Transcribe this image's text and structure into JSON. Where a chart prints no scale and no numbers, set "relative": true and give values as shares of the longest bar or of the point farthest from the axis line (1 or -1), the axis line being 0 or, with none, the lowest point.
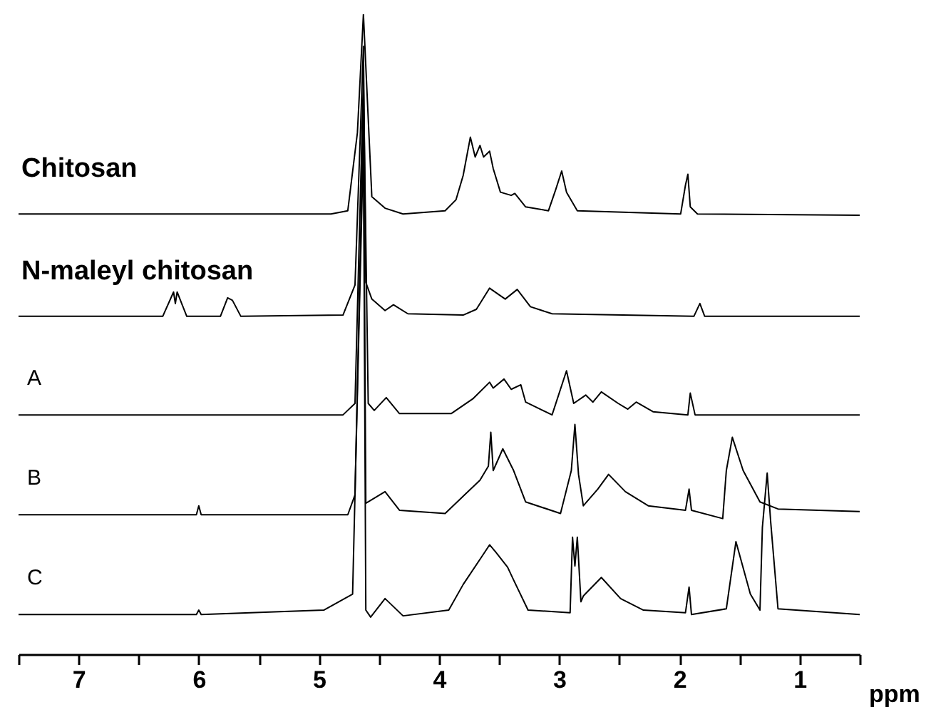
{
  "chart_data": {
    "type": "line",
    "relative": true,
    "xlabel": "ppm",
    "xlim": [
      7.5,
      0.5
    ],
    "xticks": [
      {
        "value": 7.5,
        "label": null
      },
      7,
      {
        "value": 6.5,
        "label": null
      },
      6,
      {
        "value": 5.5,
        "label": null
      },
      5,
      {
        "value": 4.5,
        "label": null
      },
      4,
      {
        "value": 3.5,
        "label": null
      },
      3,
      {
        "value": 2.5,
        "label": null
      },
      2,
      {
        "value": 1.5,
        "label": null
      },
      1,
      {
        "value": 0.5,
        "label": null
      }
    ],
    "tick_labels": "x",
    "marker": "none",
    "line_style": "solid",
    "series": [
      {
        "name": "Chitosan",
        "color": "#000000",
        "x": [
          7.5,
          4.9,
          4.76,
          4.68,
          4.63,
          4.56,
          4.45,
          4.3,
          3.95,
          3.86,
          3.8,
          3.74,
          3.7,
          3.66,
          3.63,
          3.58,
          3.55,
          3.49,
          3.4,
          3.37,
          3.28,
          3.09,
          3.03,
          2.98,
          2.94,
          2.85,
          1.99,
          1.95,
          1.93,
          1.91,
          1.85,
          0.5
        ],
        "values": [
          0.688,
          0.688,
          0.693,
          0.815,
          1.0,
          0.715,
          0.697,
          0.688,
          0.693,
          0.71,
          0.748,
          0.808,
          0.777,
          0.795,
          0.777,
          0.786,
          0.759,
          0.722,
          0.717,
          0.72,
          0.699,
          0.693,
          0.726,
          0.755,
          0.722,
          0.693,
          0.688,
          0.733,
          0.75,
          0.699,
          0.688,
          0.686
        ]
      },
      {
        "name": "N-maleyl chitosan",
        "color": "#000000",
        "x": [
          7.5,
          6.3,
          6.21,
          6.195,
          6.18,
          6.1,
          5.82,
          5.76,
          5.72,
          5.65,
          4.8,
          4.7,
          4.63,
          4.61,
          4.56,
          4.45,
          4.38,
          4.26,
          3.8,
          3.69,
          3.58,
          3.45,
          3.35,
          3.24,
          3.06,
          1.88,
          1.83,
          1.79,
          0.5
        ],
        "values": [
          0.528,
          0.528,
          0.566,
          0.548,
          0.566,
          0.528,
          0.528,
          0.557,
          0.553,
          0.528,
          0.53,
          0.577,
          0.95,
          0.581,
          0.555,
          0.537,
          0.546,
          0.532,
          0.53,
          0.539,
          0.572,
          0.555,
          0.57,
          0.543,
          0.532,
          0.528,
          0.548,
          0.528,
          0.528
        ]
      },
      {
        "name": "A",
        "color": "#000000",
        "x": [
          7.5,
          4.8,
          4.7,
          4.63,
          4.59,
          4.54,
          4.44,
          4.33,
          3.9,
          3.72,
          3.58,
          3.55,
          3.46,
          3.4,
          3.32,
          3.28,
          3.06,
          2.94,
          2.88,
          2.78,
          2.72,
          2.65,
          2.51,
          2.43,
          2.36,
          2.22,
          1.93,
          1.91,
          1.87,
          0.5
        ],
        "values": [
          0.374,
          0.374,
          0.392,
          0.9,
          0.392,
          0.381,
          0.401,
          0.376,
          0.376,
          0.399,
          0.425,
          0.416,
          0.43,
          0.414,
          0.421,
          0.394,
          0.374,
          0.443,
          0.392,
          0.405,
          0.394,
          0.41,
          0.392,
          0.383,
          0.394,
          0.379,
          0.374,
          0.408,
          0.374,
          0.374
        ]
      },
      {
        "name": "B",
        "color": "#000000",
        "x": [
          7.5,
          6.02,
          6.0,
          5.98,
          4.76,
          4.7,
          4.63,
          4.61,
          4.45,
          4.33,
          3.95,
          3.8,
          3.66,
          3.59,
          3.57,
          3.55,
          3.47,
          3.38,
          3.28,
          2.99,
          2.9,
          2.87,
          2.84,
          2.8,
          2.68,
          2.59,
          2.45,
          2.26,
          1.95,
          1.92,
          1.9,
          1.64,
          1.61,
          1.56,
          1.47,
          1.33,
          1.18,
          0.5
        ],
        "values": [
          0.218,
          0.218,
          0.232,
          0.218,
          0.218,
          0.249,
          0.85,
          0.236,
          0.254,
          0.225,
          0.22,
          0.247,
          0.272,
          0.294,
          0.347,
          0.287,
          0.321,
          0.287,
          0.238,
          0.22,
          0.287,
          0.359,
          0.281,
          0.232,
          0.258,
          0.281,
          0.254,
          0.232,
          0.225,
          0.258,
          0.225,
          0.212,
          0.287,
          0.339,
          0.287,
          0.238,
          0.227,
          0.223
        ]
      },
      {
        "name": "C",
        "color": "#000000",
        "x": [
          7.5,
          6.02,
          6.0,
          5.98,
          4.96,
          4.72,
          4.63,
          4.61,
          4.57,
          4.45,
          4.3,
          3.92,
          3.8,
          3.64,
          3.58,
          3.53,
          3.43,
          3.38,
          3.26,
          2.91,
          2.89,
          2.87,
          2.85,
          2.82,
          2.8,
          2.65,
          2.49,
          2.3,
          1.95,
          1.92,
          1.9,
          1.61,
          1.53,
          1.41,
          1.33,
          1.31,
          1.27,
          1.24,
          1.18,
          0.5
        ],
        "values": [
          0.062,
          0.062,
          0.069,
          0.062,
          0.069,
          0.094,
          0.8,
          0.069,
          0.058,
          0.087,
          0.06,
          0.069,
          0.109,
          0.154,
          0.171,
          0.16,
          0.136,
          0.116,
          0.069,
          0.065,
          0.183,
          0.138,
          0.183,
          0.082,
          0.091,
          0.12,
          0.087,
          0.069,
          0.065,
          0.105,
          0.062,
          0.071,
          0.176,
          0.094,
          0.069,
          0.198,
          0.283,
          0.205,
          0.071,
          0.062
        ]
      }
    ]
  }
}
